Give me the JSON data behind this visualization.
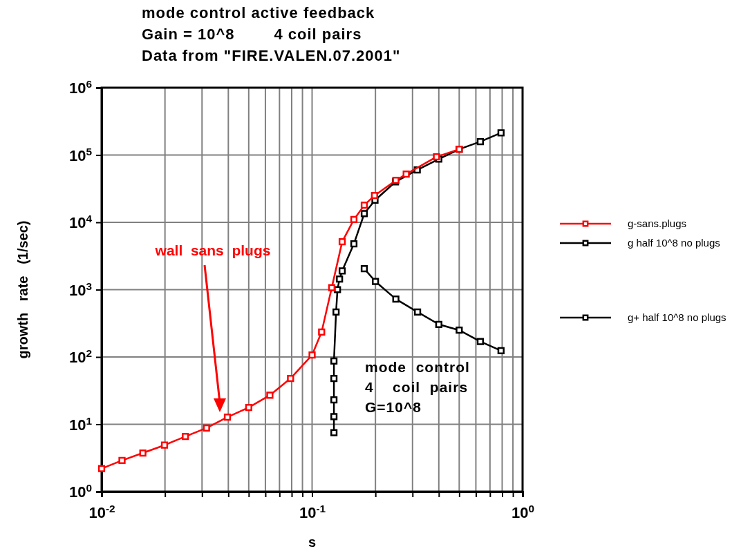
{
  "chart_data": {
    "type": "line",
    "title": "mode control active feedback\nGain = 10^8        4 coil pairs\nData from \"FIRE.VALEN.07.2001\"",
    "xlabel": "s",
    "ylabel": "growth   rate   (1/sec)",
    "log": "xy",
    "grid": true,
    "legend": "right",
    "marker": "square",
    "line_style": "solid",
    "xlim": [
      0.01,
      1
    ],
    "ylim": [
      1,
      1000000
    ],
    "xticks": [
      {
        "value": 0.01,
        "label": "10$^{-2}$"
      },
      {
        "value": 0.02,
        "label": null
      },
      {
        "value": 0.03,
        "label": null
      },
      {
        "value": 0.04,
        "label": null
      },
      {
        "value": 0.05,
        "label": null
      },
      {
        "value": 0.06,
        "label": null
      },
      {
        "value": 0.07,
        "label": null
      },
      {
        "value": 0.08,
        "label": null
      },
      {
        "value": 0.09,
        "label": null
      },
      {
        "value": 0.1,
        "label": "10$^{-1}$"
      },
      {
        "value": 0.2,
        "label": null
      },
      {
        "value": 0.3,
        "label": null
      },
      {
        "value": 0.4,
        "label": null
      },
      {
        "value": 0.5,
        "label": null
      },
      {
        "value": 0.6,
        "label": null
      },
      {
        "value": 0.7,
        "label": null
      },
      {
        "value": 0.8,
        "label": null
      },
      {
        "value": 0.9,
        "label": null
      },
      {
        "value": 1,
        "label": "10$^{0}$"
      }
    ],
    "yticks": [
      {
        "value": 1,
        "label": "10$^{0}$"
      },
      {
        "value": 10,
        "label": "10$^{1}$"
      },
      {
        "value": 100,
        "label": "10$^{2}$"
      },
      {
        "value": 1000,
        "label": "10$^{3}$"
      },
      {
        "value": 10000,
        "label": "10$^{4}$"
      },
      {
        "value": 100000,
        "label": "10$^{5}$"
      },
      {
        "value": 1000000,
        "label": "10$^{6}$"
      }
    ],
    "series": [
      {
        "name": "g-sans.plugs",
        "color": "#ff0000",
        "x": [
          0.01,
          0.0125,
          0.0157,
          0.0199,
          0.025,
          0.0315,
          0.0396,
          0.05,
          0.063,
          0.079,
          0.1,
          0.111,
          0.124,
          0.139,
          0.158,
          0.177,
          0.198,
          0.25,
          0.28,
          0.39,
          0.5
        ],
        "values": [
          2.2,
          2.9,
          3.75,
          4.9,
          6.6,
          8.8,
          12.8,
          17.8,
          27,
          48,
          107,
          235,
          1070,
          5150,
          11000,
          18000,
          25000,
          42000,
          52000,
          94000,
          122000
        ]
      },
      {
        "name": "g half 10^8 no plugs",
        "color": "#000000",
        "x": [
          0.127,
          0.127,
          0.127,
          0.127,
          0.127,
          0.13,
          0.132,
          0.135,
          0.139,
          0.158,
          0.177,
          0.199,
          0.249,
          0.316,
          0.4,
          0.5,
          0.63,
          0.79
        ],
        "values": [
          7.5,
          13,
          23,
          48,
          87,
          465,
          1000,
          1440,
          1900,
          4800,
          13500,
          21300,
          40000,
          60000,
          87000,
          122000,
          158000,
          214000
        ]
      },
      {
        "name": "g+ half 10^8 no plugs",
        "color": "#000000",
        "x": [
          0.177,
          0.2,
          0.25,
          0.317,
          0.4,
          0.5,
          0.63,
          0.79
        ],
        "values": [
          2050,
          1320,
          725,
          465,
          305,
          250,
          170,
          124
        ]
      }
    ],
    "annotations": [
      "wall  sans  plugs",
      "mode  control\n4    coil  pairs\nG=10^8"
    ]
  }
}
